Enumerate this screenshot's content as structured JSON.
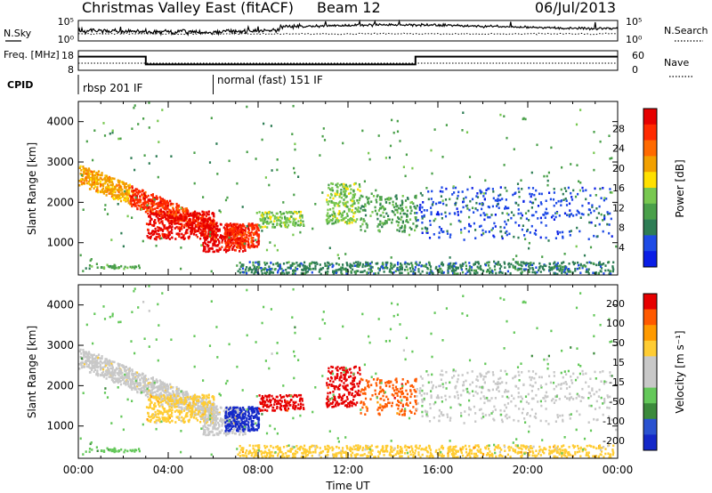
{
  "header": {
    "title": "Christmas Valley East (fitACF)",
    "beam": "Beam 12",
    "date": "06/Jul/2013"
  },
  "colors": {
    "power_scale": [
      "#0a1ee6",
      "#1e4be6",
      "#2e7d55",
      "#4aa04a",
      "#78c850",
      "#ffe000",
      "#f2a000",
      "#ff6a00",
      "#ff2a00",
      "#e60000"
    ],
    "velocity_scale": [
      "#1428c8",
      "#2a52d0",
      "#3c8a3c",
      "#64c85a",
      "#c8c8c8",
      "#c8c8c8",
      "#ffcc33",
      "#ff9a00",
      "#ff5a00",
      "#e60000"
    ]
  },
  "chart_data": [
    {
      "type": "line",
      "panel": "nsky-nsearch",
      "left_label": "N.Sky",
      "right_label": "N.Search",
      "y_scale": "log",
      "left_ticks": [
        "10^5",
        "10^0"
      ],
      "right_ticks": [
        "10^5",
        "10^0"
      ]
    },
    {
      "type": "line",
      "panel": "frequency-nave",
      "left_label": "Freq. [MHz]",
      "right_label": "Nave",
      "left_ticks": [
        18,
        8
      ],
      "right_ticks": [
        60,
        0
      ],
      "freq_mhz": {
        "x_hours": [
          0,
          3,
          3,
          15,
          15,
          24
        ],
        "values": [
          15.0,
          15.0,
          11.0,
          11.0,
          15.0,
          15.0
        ]
      },
      "nave_dotted": 14
    },
    {
      "type": "table",
      "panel": "cpid",
      "label": "CPID",
      "entries": [
        {
          "start_hour": 0,
          "label": "rbsp 201 IF"
        },
        {
          "start_hour": 6,
          "label": "normal (fast) 151 IF"
        }
      ]
    },
    {
      "type": "heatmap",
      "panel": "power",
      "ylabel": "Slant Range [km]",
      "ylim": [
        200,
        4500
      ],
      "yticks": [
        1000,
        2000,
        3000,
        4000
      ],
      "colorbar_label": "Power [dB]",
      "colorbar_ticks": [
        4,
        8,
        12,
        16,
        20,
        24,
        28
      ],
      "clim": [
        0,
        32
      ]
    },
    {
      "type": "heatmap",
      "panel": "velocity",
      "ylabel": "Slant Range [km]",
      "xlabel": "Time UT",
      "ylim": [
        200,
        4500
      ],
      "yticks": [
        1000,
        2000,
        3000,
        4000
      ],
      "xticks": [
        "00:00",
        "04:00",
        "08:00",
        "12:00",
        "16:00",
        "20:00",
        "00:00"
      ],
      "xlim_hours": [
        0,
        24
      ],
      "colorbar_label": "Velocity [m s⁻¹]",
      "colorbar_ticks": [
        200,
        100,
        50,
        15,
        -15,
        -50,
        -100,
        -200
      ],
      "clim": [
        -250,
        250
      ]
    }
  ]
}
